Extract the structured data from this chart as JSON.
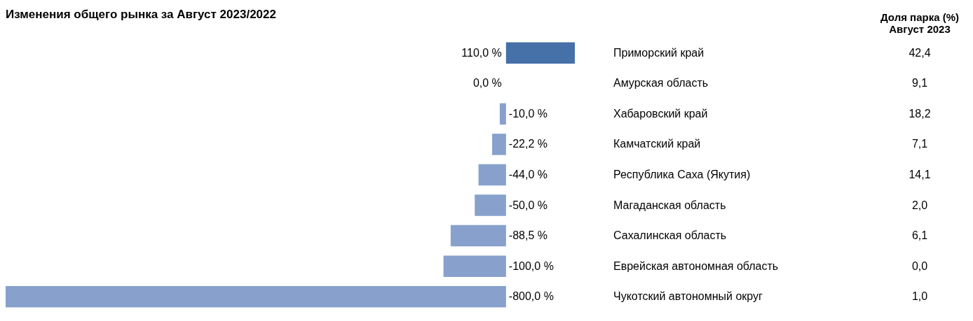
{
  "chart_data": [
    {
      "type": "bar",
      "orientation": "horizontal",
      "title": "Изменения общего рынка за Август 2023/2022",
      "categories": [
        "Приморский край",
        "Амурская область",
        "Хабаровский край",
        "Камчатский край",
        "Республика Саха (Якутия)",
        "Магаданская область",
        "Сахалинская область",
        "Еврейская автономная область",
        "Чукотский автономный округ"
      ],
      "values": [
        110.0,
        0.0,
        -10.0,
        -22.2,
        -44.0,
        -50.0,
        -88.5,
        -100.0,
        -800.0
      ],
      "colors": [
        "#4570a8",
        "#87a1cc",
        "#87a1cc",
        "#87a1cc",
        "#87a1cc",
        "#87a1cc",
        "#87a1cc",
        "#87a1cc",
        "#87a1cc"
      ],
      "value_labels": [
        "110,0 %",
        "0,0 %",
        "-10,0 %",
        "-22,2 %",
        "-44,0 %",
        "-50,0 %",
        "-88,5 %",
        "-100,0 %",
        "-800,0 %"
      ],
      "xlim": [
        -800,
        110
      ]
    },
    {
      "type": "other",
      "title": "Доля парка (%)\nАвгуст 2023",
      "values": [
        42.4,
        9.1,
        18.2,
        7.1,
        14.1,
        2.0,
        6.1,
        0.0,
        1.0
      ],
      "value_labels": [
        "42,4",
        "9,1",
        "18,2",
        "7,1",
        "14,1",
        "2,0",
        "6,1",
        "0,0",
        "1,0"
      ]
    }
  ]
}
